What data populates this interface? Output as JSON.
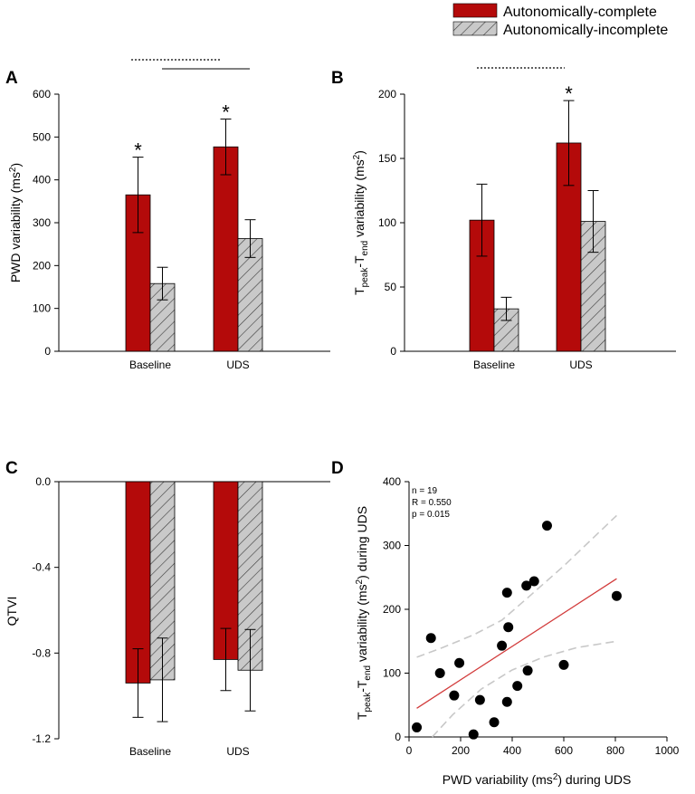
{
  "legend": {
    "complete": "Autonomically-complete",
    "incomplete": "Autonomically-incomplete"
  },
  "colors": {
    "complete": "#b40a0a",
    "incomplete": "#c9c9c9",
    "regression": "#d23b3b",
    "ci": "#c8c8c8",
    "points": "#000000"
  },
  "chart_data": [
    {
      "panel": "A",
      "type": "bar",
      "categories": [
        "Baseline",
        "UDS"
      ],
      "series": [
        {
          "name": "Autonomically-complete",
          "values": [
            365,
            477
          ],
          "error": [
            88,
            65
          ]
        },
        {
          "name": "Autonomically-incomplete",
          "values": [
            158,
            263
          ],
          "error": [
            38,
            44
          ]
        }
      ],
      "ylabel": "PWD variability (ms²)",
      "ylabel_parts": {
        "pre": "PWD variability (ms",
        "sup": "2",
        "post": ")"
      },
      "ylim": [
        0,
        600
      ],
      "yticks": [
        0,
        100,
        200,
        300,
        400,
        500,
        600
      ],
      "significance_stars": [
        {
          "category": "Baseline",
          "symbol": "*"
        },
        {
          "category": "UDS",
          "symbol": "*"
        }
      ]
    },
    {
      "panel": "B",
      "type": "bar",
      "categories": [
        "Baseline",
        "UDS"
      ],
      "series": [
        {
          "name": "Autonomically-complete",
          "values": [
            102,
            162
          ],
          "error": [
            28,
            33
          ]
        },
        {
          "name": "Autonomically-incomplete",
          "values": [
            33,
            101
          ],
          "error": [
            9,
            24
          ]
        }
      ],
      "ylabel": "Tpeak-Tend variability (ms²)",
      "ylabel_parts": {
        "t1": "T",
        "sub1": "peak",
        "dash": "-T",
        "sub2": "end",
        "mid": " variability (ms",
        "sup": "2",
        "post": ")"
      },
      "ylim": [
        0,
        200
      ],
      "yticks": [
        0,
        50,
        100,
        150,
        200
      ],
      "significance_stars": [
        {
          "category": "UDS",
          "symbol": "*"
        }
      ]
    },
    {
      "panel": "C",
      "type": "bar",
      "categories": [
        "Baseline",
        "UDS"
      ],
      "series": [
        {
          "name": "Autonomically-complete",
          "values": [
            -0.94,
            -0.83
          ],
          "error": [
            0.16,
            0.145
          ]
        },
        {
          "name": "Autonomically-incomplete",
          "values": [
            -0.925,
            -0.88
          ],
          "error": [
            0.195,
            0.19
          ]
        }
      ],
      "ylabel": "QTVI",
      "ylim": [
        -1.2,
        0
      ],
      "yticks": [
        "-1.2",
        "-0.8",
        "-0.4",
        "0.0"
      ]
    },
    {
      "panel": "D",
      "type": "scatter",
      "xlabel": "PWD variability (ms²) during UDS",
      "xlabel_parts": {
        "pre": "PWD variability (ms",
        "sup": "2",
        "post": ") during UDS"
      },
      "ylabel": "Tpeak-Tend variability (ms²) during UDS",
      "ylabel_parts": {
        "t1": "T",
        "sub1": "peak",
        "dash": "-T",
        "sub2": "end",
        "mid": " variability (ms",
        "sup": "2",
        "post": ") during UDS"
      },
      "xlim": [
        0,
        1000
      ],
      "ylim": [
        0,
        400
      ],
      "xticks": [
        0,
        200,
        400,
        600,
        800,
        1000
      ],
      "yticks": [
        0,
        100,
        200,
        300,
        400
      ],
      "stats": [
        "n = 19",
        "R = 0.550",
        "p = 0.015"
      ],
      "points": [
        [
          30,
          15
        ],
        [
          85,
          155
        ],
        [
          120,
          100
        ],
        [
          175,
          65
        ],
        [
          195,
          116
        ],
        [
          250,
          4
        ],
        [
          275,
          58
        ],
        [
          330,
          23
        ],
        [
          360,
          143
        ],
        [
          380,
          226
        ],
        [
          385,
          172
        ],
        [
          380,
          55
        ],
        [
          420,
          80
        ],
        [
          455,
          237
        ],
        [
          460,
          104
        ],
        [
          485,
          244
        ],
        [
          535,
          331
        ],
        [
          600,
          113
        ],
        [
          805,
          221
        ]
      ],
      "regression": {
        "x0": 30,
        "y0": 45,
        "x1": 805,
        "y1": 248
      },
      "ci_upper": [
        [
          30,
          125
        ],
        [
          130,
          140
        ],
        [
          250,
          160
        ],
        [
          360,
          183
        ],
        [
          460,
          218
        ],
        [
          600,
          268
        ],
        [
          805,
          347
        ]
      ],
      "ci_lower": [
        [
          90,
          0
        ],
        [
          170,
          35
        ],
        [
          280,
          75
        ],
        [
          400,
          105
        ],
        [
          520,
          125
        ],
        [
          650,
          140
        ],
        [
          805,
          150
        ]
      ]
    }
  ]
}
